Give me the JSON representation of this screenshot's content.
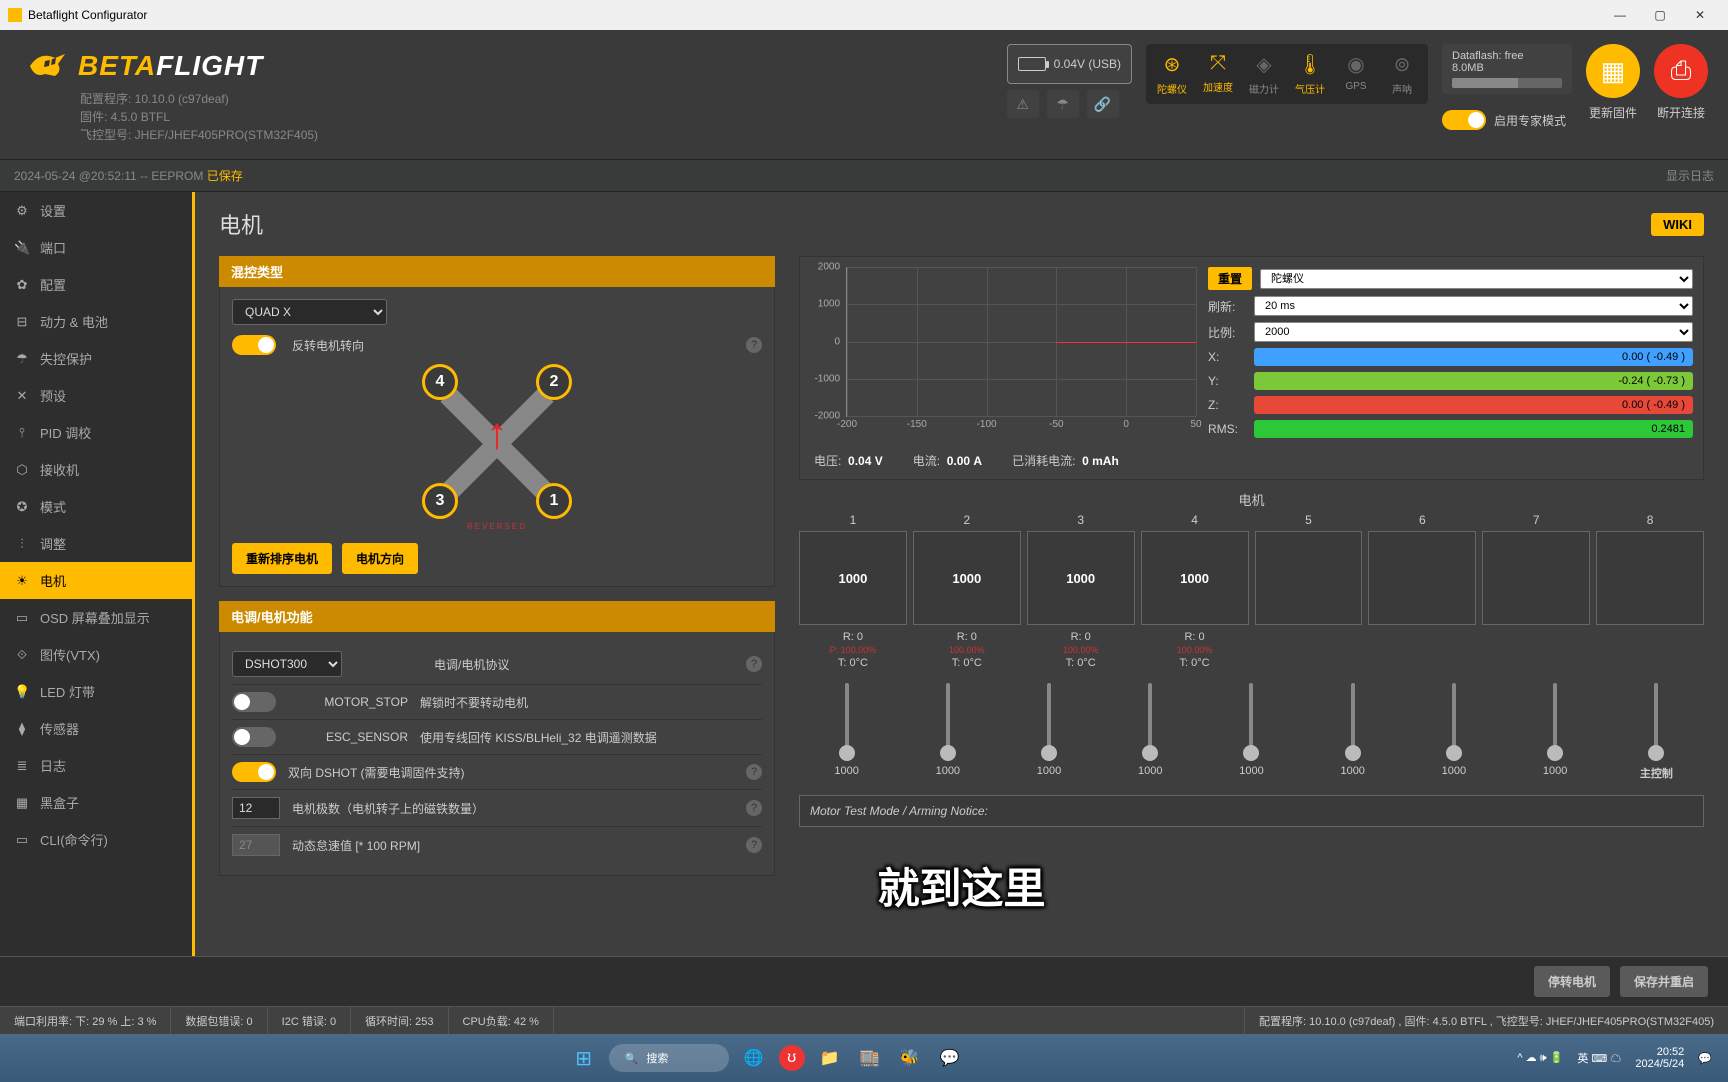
{
  "window": {
    "title": "Betaflight Configurator"
  },
  "brand": {
    "part1": "BETA",
    "part2": "FLIGHT"
  },
  "version": {
    "config": "配置程序: 10.10.0 (c97deaf)",
    "firmware": "固件: 4.5.0 BTFL",
    "target": "飞控型号: JHEF/JHEF405PRO(STM32F405)"
  },
  "battery": {
    "voltage": "0.04V (USB)"
  },
  "sensors": {
    "gyro": "陀螺仪",
    "accel": "加速度",
    "mag": "磁力计",
    "baro": "气压计",
    "gps": "GPS",
    "sonar": "声呐"
  },
  "dataflash": {
    "label": "Dataflash: free",
    "size": "8.0MB"
  },
  "expert": {
    "label": "启用专家模式"
  },
  "actions": {
    "update": "更新固件",
    "disconnect": "断开连接"
  },
  "status_line": {
    "time": "2024-05-24 @20:52:11 -- EEPROM ",
    "saved": "已保存",
    "show_log": "显示日志"
  },
  "nav": [
    {
      "icon": "⚙",
      "label": "设置"
    },
    {
      "icon": "🔌",
      "label": "端口"
    },
    {
      "icon": "✿",
      "label": "配置"
    },
    {
      "icon": "⊟",
      "label": "动力 & 电池"
    },
    {
      "icon": "☂",
      "label": "失控保护"
    },
    {
      "icon": "✕",
      "label": "预设"
    },
    {
      "icon": "⫯",
      "label": "PID 调校"
    },
    {
      "icon": "⬡",
      "label": "接收机"
    },
    {
      "icon": "✪",
      "label": "模式"
    },
    {
      "icon": "⫶",
      "label": "调整"
    },
    {
      "icon": "☀",
      "label": "电机"
    },
    {
      "icon": "▭",
      "label": "OSD 屏幕叠加显示"
    },
    {
      "icon": "⟐",
      "label": "图传(VTX)"
    },
    {
      "icon": "💡",
      "label": "LED 灯带"
    },
    {
      "icon": "⧫",
      "label": "传感器"
    },
    {
      "icon": "≣",
      "label": "日志"
    },
    {
      "icon": "▦",
      "label": "黑盒子"
    },
    {
      "icon": "▭",
      "label": "CLI(命令行)"
    }
  ],
  "nav_active_idx": 10,
  "page": {
    "title": "电机",
    "wiki": "WIKI"
  },
  "mixer": {
    "header": "混控类型",
    "type": "QUAD X",
    "reverse_label": "反转电机转向",
    "reverse_on": true,
    "btn_reorder": "重新排序电机",
    "btn_direction": "电机方向"
  },
  "esc": {
    "header": "电调/电机功能",
    "protocol": "DSHOT300",
    "protocol_label": "电调/电机协议",
    "motor_stop": "MOTOR_STOP",
    "motor_stop_desc": "解锁时不要转动电机",
    "esc_sensor": "ESC_SENSOR",
    "esc_sensor_desc": "使用专线回传 KISS/BLHeli_32 电调遥测数据",
    "bidir": "双向 DSHOT (需要电调固件支持)",
    "bidir_on": true,
    "poles": "12",
    "poles_label": "电机极数（电机转子上的磁铁数量）",
    "idle": "27",
    "idle_label": "动态怠速值 [* 100 RPM]"
  },
  "graph": {
    "reset": "重置",
    "source": "陀螺仪",
    "refresh_lbl": "刷新:",
    "refresh_val": "20 ms",
    "scale_lbl": "比例:",
    "scale_val": "2000",
    "x_lbl": "X:",
    "x_val": "0.00 ( -0.49 )",
    "y_lbl": "Y:",
    "y_val": "-0.24 ( -0.73 )",
    "z_lbl": "Z:",
    "z_val": "0.00 ( -0.49 )",
    "rms_lbl": "RMS:",
    "rms_val": "0.2481",
    "yticks": [
      "2000",
      "1000",
      "0",
      "-1000",
      "-2000"
    ],
    "xticks": [
      "-200",
      "-150",
      "-100",
      "-50",
      "0",
      "50"
    ]
  },
  "telemetry": {
    "v_lbl": "电压:",
    "v": "0.04 V",
    "a_lbl": "电流:",
    "a": "0.00 A",
    "mah_lbl": "已消耗电流:",
    "mah": "0 mAh"
  },
  "motors": {
    "header": "电机",
    "nums": [
      "1",
      "2",
      "3",
      "4",
      "5",
      "6",
      "7",
      "8"
    ],
    "vals": [
      "1000",
      "1000",
      "1000",
      "1000",
      "",
      "",
      "",
      ""
    ],
    "r": [
      "R:    0",
      "R:    0",
      "R:    0",
      "R:    0",
      "",
      "",
      "",
      ""
    ],
    "p": [
      "P: 100.00%",
      "100.00%",
      "100.00%",
      "100.00%",
      "",
      "",
      "",
      ""
    ],
    "t": [
      "T:    0°C",
      "T:    0°C",
      "T:    0°C",
      "T:    0°C",
      "",
      "",
      "",
      ""
    ],
    "sliders": [
      "1000",
      "1000",
      "1000",
      "1000",
      "1000",
      "1000",
      "1000",
      "1000"
    ],
    "master": "主控制",
    "notice": "Motor Test Mode / Arming Notice:"
  },
  "footer": {
    "stop": "停转电机",
    "save": "保存并重启"
  },
  "statusbar": {
    "port": "端口利用率:   下: 29 % 上: 3 %",
    "pkt": "数据包错误: 0",
    "i2c": "I2C 错误: 0",
    "cycle": "循环时间: 253",
    "cpu": "CPU负载: 42 %",
    "cfg": "配置程序: 10.10.0 (c97deaf) , 固件: 4.5.0 BTFL , 飞控型号: JHEF/JHEF405PRO(STM32F405)"
  },
  "subtitle": "就到这里",
  "taskbar": {
    "search": "搜索",
    "tray": "英 ⌨ ☁",
    "time": "20:52",
    "date": "2024/5/24"
  }
}
